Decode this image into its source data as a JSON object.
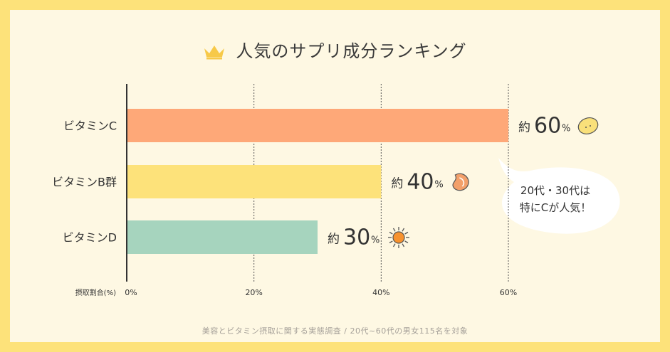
{
  "title": "人気のサプリ成分ランキング",
  "icons": {
    "title": "crown-icon",
    "vitamin_c": "lemon-icon",
    "vitamin_b": "bean-icon",
    "vitamin_d": "sun-icon"
  },
  "bubble": {
    "line1": "20代・30代は",
    "line2": "特にCが人気！"
  },
  "footnote": "美容とビタミン摂取に関する実態調査 / 20代~60代の男女115名を対象",
  "chart_data": {
    "type": "bar",
    "orientation": "horizontal",
    "title": "人気のサプリ成分ランキング",
    "categories": [
      "ビタミンC",
      "ビタミンB群",
      "ビタミンD"
    ],
    "values": [
      60,
      40,
      30
    ],
    "value_prefix": "約",
    "value_unit": "%",
    "colors": [
      "#fea878",
      "#fde27a",
      "#a6d4be"
    ],
    "xlabel": "摂取割合(%)",
    "xlim": [
      0,
      60
    ],
    "xticks": [
      "0%",
      "20%",
      "40%",
      "60%"
    ],
    "grid": true
  }
}
